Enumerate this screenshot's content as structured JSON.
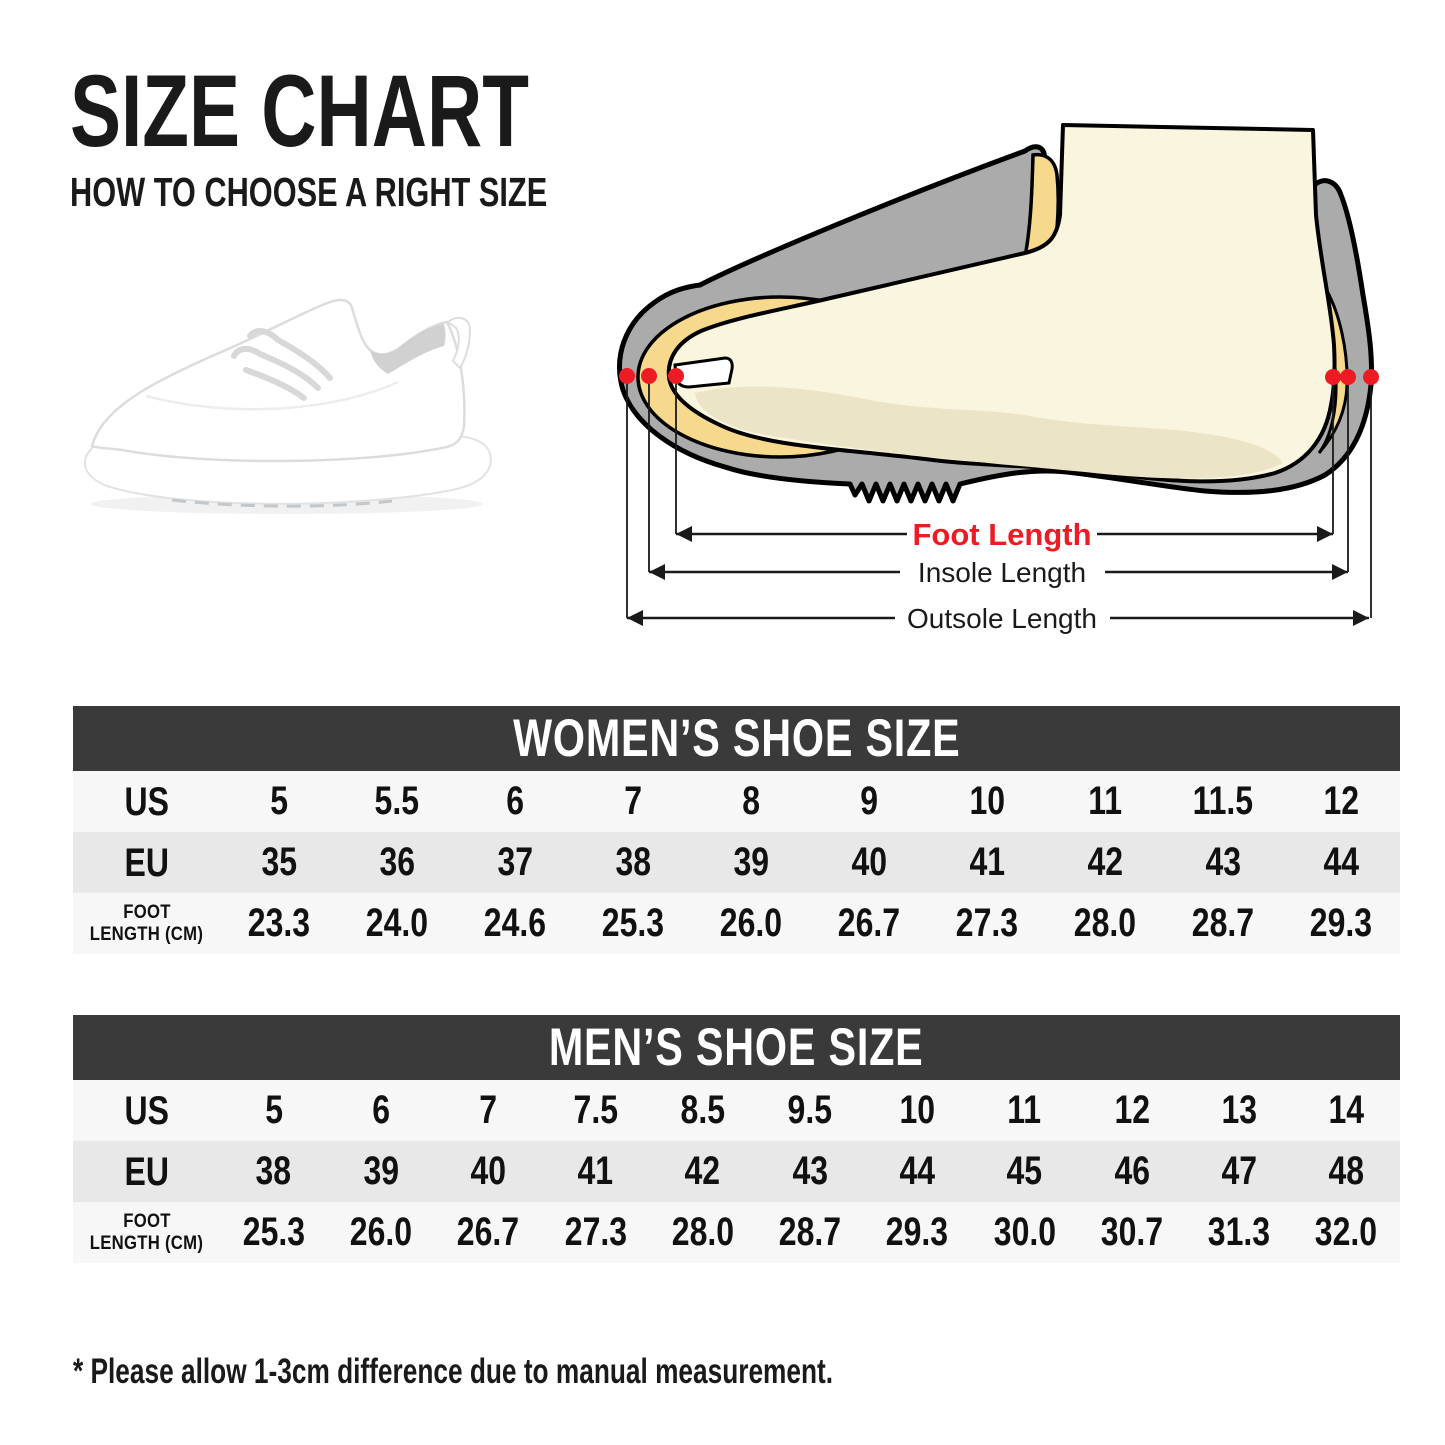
{
  "page": {
    "title": "SIZE CHART",
    "subtitle": "HOW TO CHOOSE A RIGHT SIZE",
    "footnote": "* Please allow 1-3cm difference due to manual measurement."
  },
  "diagram": {
    "foot_length_label": "Foot Length",
    "insole_length_label": "Insole Length",
    "outsole_length_label": "Outsole Length",
    "colors": {
      "shoe_gray": "#ababab",
      "insole_yellow": "#f7d98e",
      "foot_cream": "#faf5df",
      "foot_shade": "#ece4c6",
      "marker_red": "#ed1c24",
      "outline": "#000000"
    }
  },
  "theme": {
    "header_bg": "#3a3a3a",
    "header_text": "#ffffff",
    "row_light": "#f7f7f7",
    "row_dark": "#e8e8e8"
  },
  "tables": [
    {
      "id": "women",
      "title": "WOMEN’S SHOE SIZE",
      "rows": [
        {
          "key": "us",
          "label_lines": [
            "US"
          ],
          "small": false,
          "values": [
            "5",
            "5.5",
            "6",
            "7",
            "8",
            "9",
            "10",
            "11",
            "11.5",
            "12"
          ]
        },
        {
          "key": "eu",
          "label_lines": [
            "EU"
          ],
          "small": false,
          "values": [
            "35",
            "36",
            "37",
            "38",
            "39",
            "40",
            "41",
            "42",
            "43",
            "44"
          ]
        },
        {
          "key": "foot-length-cm",
          "label_lines": [
            "FOOT",
            "LENGTH (CM)"
          ],
          "small": true,
          "values": [
            "23.3",
            "24.0",
            "24.6",
            "25.3",
            "26.0",
            "26.7",
            "27.3",
            "28.0",
            "28.7",
            "29.3"
          ]
        }
      ]
    },
    {
      "id": "men",
      "title": "MEN’S SHOE SIZE",
      "rows": [
        {
          "key": "us",
          "label_lines": [
            "US"
          ],
          "small": false,
          "values": [
            "5",
            "6",
            "7",
            "7.5",
            "8.5",
            "9.5",
            "10",
            "11",
            "12",
            "13",
            "14"
          ]
        },
        {
          "key": "eu",
          "label_lines": [
            "EU"
          ],
          "small": false,
          "values": [
            "38",
            "39",
            "40",
            "41",
            "42",
            "43",
            "44",
            "45",
            "46",
            "47",
            "48"
          ]
        },
        {
          "key": "foot-length-cm",
          "label_lines": [
            "FOOT",
            "LENGTH (CM)"
          ],
          "small": true,
          "values": [
            "25.3",
            "26.0",
            "26.7",
            "27.3",
            "28.0",
            "28.7",
            "29.3",
            "30.0",
            "30.7",
            "31.3",
            "32.0"
          ]
        }
      ]
    }
  ]
}
